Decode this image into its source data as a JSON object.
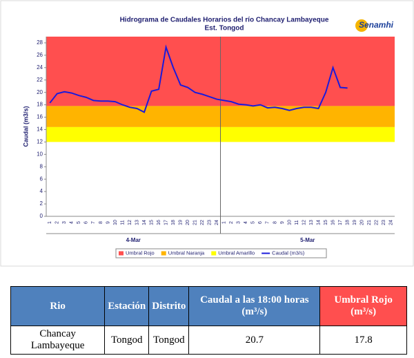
{
  "chart_data": {
    "type": "line",
    "title": "Hidrograma de Caudales Horarios del río Chancay Lambayeque",
    "subtitle": "Est. Tongod",
    "logo": "Senamhi",
    "y_label": "Caudal  (m3/s)",
    "categories": [
      "1",
      "2",
      "3",
      "4",
      "5",
      "6",
      "7",
      "8",
      "9",
      "10",
      "11",
      "12",
      "13",
      "14",
      "15",
      "16",
      "17",
      "18",
      "19",
      "20",
      "21",
      "22",
      "23",
      "24",
      "1",
      "2",
      "3",
      "4",
      "5",
      "6",
      "7",
      "8",
      "9",
      "10",
      "11",
      "12",
      "13",
      "14",
      "15",
      "16",
      "17",
      "18",
      "19",
      "20",
      "21",
      "22",
      "23",
      "24"
    ],
    "groups": [
      "4-Mar",
      "5-Mar"
    ],
    "thresholds": [
      {
        "name": "Umbral Rojo",
        "color": "#ff4f4f",
        "value": 17.8
      },
      {
        "name": "Umbral Naranja",
        "color": "#ffb400",
        "value": 14.4
      },
      {
        "name": "Umbral Amarillo",
        "color": "#ffff00",
        "value": 12
      }
    ],
    "series": [
      {
        "name": "Caudal (m3/s)",
        "color": "#1a1adb",
        "values": [
          18.3,
          19.8,
          20.1,
          19.9,
          19.5,
          19.2,
          18.7,
          18.6,
          18.6,
          18.5,
          18.0,
          17.6,
          17.4,
          16.8,
          20.2,
          20.5,
          27.3,
          24.0,
          21.2,
          20.8,
          20.0,
          19.7,
          19.3,
          18.9,
          18.7,
          18.5,
          18.1,
          18.0,
          17.8,
          18.0,
          17.5,
          17.6,
          17.4,
          17.1,
          17.4,
          17.6,
          17.6,
          17.4,
          20.0,
          24.0,
          20.8,
          20.7,
          null,
          null,
          null,
          null,
          null,
          null
        ]
      }
    ],
    "ylim": [
      0,
      29
    ],
    "yticks": [
      0,
      2,
      4,
      6,
      8,
      10,
      12,
      14,
      16,
      18,
      20,
      22,
      24,
      26,
      28
    ]
  },
  "table": {
    "header": [
      "Rio",
      "Estación",
      "Distrito",
      "Caudal a las 18:00 horas (m³/s)",
      "Umbral Rojo (m³/s)"
    ],
    "rows": [
      [
        "Chancay Lambayeque",
        "Tongod",
        "Tongod",
        "20.7",
        "17.8"
      ]
    ]
  }
}
